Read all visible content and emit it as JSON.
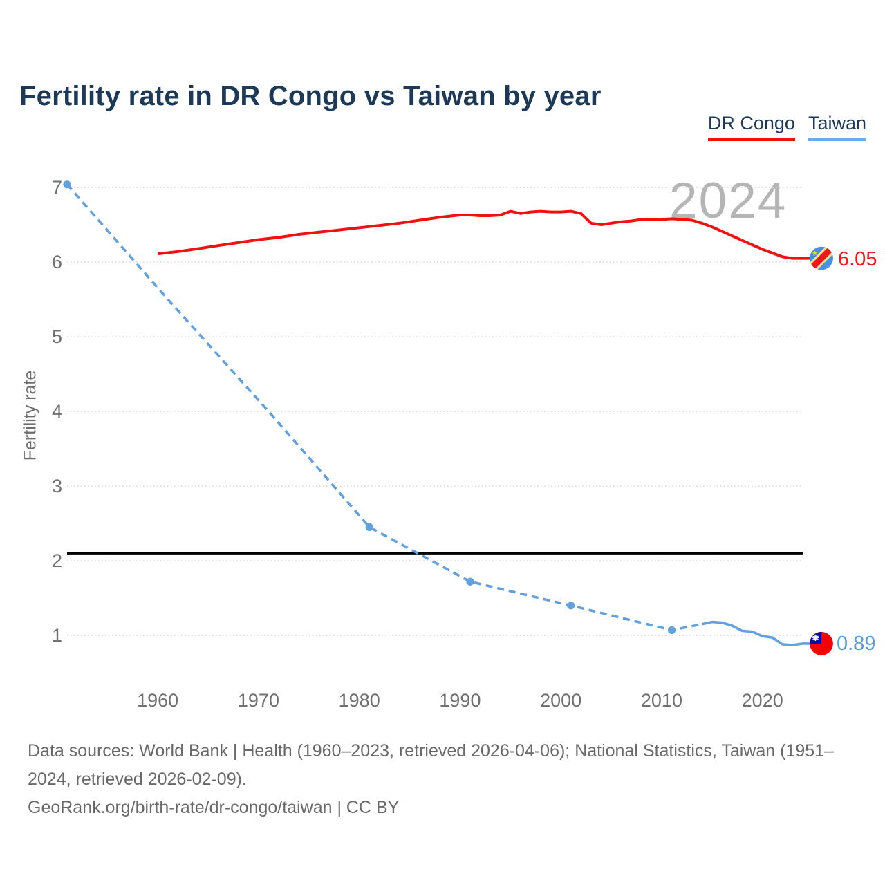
{
  "title": "Fertility rate in DR Congo vs Taiwan by year",
  "legend": {
    "items": [
      {
        "label": "DR Congo",
        "color": "#f21111"
      },
      {
        "label": "Taiwan",
        "color": "#6cace4"
      }
    ]
  },
  "watermark": "2024",
  "ylabel": "Fertility rate",
  "footer": {
    "sources": "Data sources: World Bank | Health (1960–2023, retrieved 2026-04-06); National Statistics, Taiwan (1951–2024, retrieved 2026-02-09).",
    "link": "GeoRank.org/birth-rate/dr-congo/taiwan | CC BY"
  },
  "chart_data": {
    "type": "line",
    "title": "Fertility rate in DR Congo vs Taiwan by year",
    "xlabel": "",
    "ylabel": "Fertility rate",
    "xlim": [
      1951,
      2024
    ],
    "ylim": [
      0.5,
      7.2
    ],
    "x_ticks": [
      "1960",
      "1970",
      "1980",
      "1990",
      "2000",
      "2010",
      "2020"
    ],
    "y_ticks": [
      "1",
      "2",
      "3",
      "4",
      "5",
      "6",
      "7"
    ],
    "grid": "horizontal-dotted",
    "legend_position": "top-right",
    "replacement_line": {
      "value": 2.1,
      "color": "#000000"
    },
    "series": [
      {
        "name": "DR Congo",
        "color": "#f21111",
        "style": "solid",
        "end_label": "6.05",
        "end_year": 2023,
        "flag": "dr-congo",
        "points": [
          [
            1960,
            6.11
          ],
          [
            1962,
            6.14
          ],
          [
            1964,
            6.18
          ],
          [
            1966,
            6.22
          ],
          [
            1968,
            6.26
          ],
          [
            1970,
            6.3
          ],
          [
            1972,
            6.33
          ],
          [
            1974,
            6.37
          ],
          [
            1976,
            6.4
          ],
          [
            1978,
            6.43
          ],
          [
            1980,
            6.46
          ],
          [
            1982,
            6.49
          ],
          [
            1984,
            6.52
          ],
          [
            1986,
            6.56
          ],
          [
            1988,
            6.6
          ],
          [
            1990,
            6.63
          ],
          [
            1991,
            6.63
          ],
          [
            1992,
            6.62
          ],
          [
            1993,
            6.62
          ],
          [
            1994,
            6.63
          ],
          [
            1995,
            6.68
          ],
          [
            1996,
            6.65
          ],
          [
            1997,
            6.67
          ],
          [
            1998,
            6.68
          ],
          [
            1999,
            6.67
          ],
          [
            2000,
            6.67
          ],
          [
            2001,
            6.68
          ],
          [
            2002,
            6.65
          ],
          [
            2003,
            6.52
          ],
          [
            2004,
            6.5
          ],
          [
            2005,
            6.52
          ],
          [
            2006,
            6.54
          ],
          [
            2007,
            6.55
          ],
          [
            2008,
            6.57
          ],
          [
            2009,
            6.57
          ],
          [
            2010,
            6.57
          ],
          [
            2011,
            6.58
          ],
          [
            2012,
            6.57
          ],
          [
            2013,
            6.56
          ],
          [
            2014,
            6.52
          ],
          [
            2015,
            6.47
          ],
          [
            2016,
            6.41
          ],
          [
            2017,
            6.35
          ],
          [
            2018,
            6.29
          ],
          [
            2019,
            6.23
          ],
          [
            2020,
            6.17
          ],
          [
            2021,
            6.12
          ],
          [
            2022,
            6.07
          ],
          [
            2023,
            6.05
          ]
        ]
      },
      {
        "name": "Taiwan",
        "color": "#62a1df",
        "style": "dashed-then-solid",
        "end_label": "0.89",
        "end_year": 2024,
        "flag": "taiwan",
        "dashed_points": [
          [
            1951,
            7.04
          ],
          [
            1961,
            5.5
          ],
          [
            1971,
            4.0
          ],
          [
            1981,
            2.45
          ],
          [
            1991,
            1.72
          ],
          [
            2001,
            1.4
          ],
          [
            2011,
            1.07
          ],
          [
            2014,
            1.15
          ]
        ],
        "solid_points": [
          [
            2014,
            1.15
          ],
          [
            2015,
            1.18
          ],
          [
            2016,
            1.17
          ],
          [
            2017,
            1.13
          ],
          [
            2018,
            1.06
          ],
          [
            2019,
            1.05
          ],
          [
            2020,
            0.99
          ],
          [
            2021,
            0.97
          ],
          [
            2022,
            0.88
          ],
          [
            2023,
            0.87
          ],
          [
            2024,
            0.89
          ]
        ],
        "marker_points": [
          [
            1951,
            7.04
          ],
          [
            1981,
            2.45
          ],
          [
            1991,
            1.72
          ],
          [
            2001,
            1.4
          ],
          [
            2011,
            1.07
          ]
        ]
      }
    ]
  }
}
